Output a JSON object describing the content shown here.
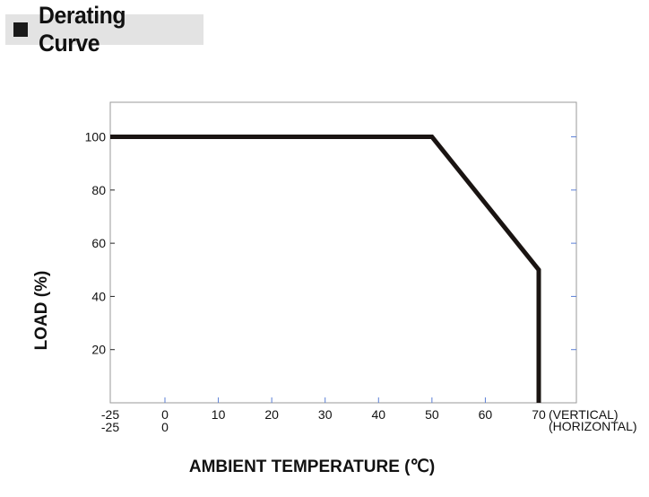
{
  "header": {
    "title": "Derating Curve"
  },
  "chart_data": {
    "type": "line",
    "title": "Derating Curve",
    "xlabel": "AMBIENT TEMPERATURE (℃)",
    "ylabel": "LOAD (%)",
    "x_ticks_vertical": [
      "-25",
      "10",
      "20",
      "30",
      "40",
      "50",
      "60",
      "70"
    ],
    "x_ticks_horizontal": [
      "-25",
      "0"
    ],
    "x_tick_vertical_zero": "0",
    "x_tick_values": [
      -25,
      0,
      10,
      20,
      30,
      40,
      50,
      60,
      70
    ],
    "y_ticks": [
      "20",
      "40",
      "60",
      "80",
      "100"
    ],
    "y_tick_values": [
      20,
      40,
      60,
      80,
      100
    ],
    "xlim": [
      -25,
      80
    ],
    "ylim": [
      0,
      113
    ],
    "suffix_vertical": "(VERTICAL)",
    "suffix_horizontal": "(HORIZONTAL)",
    "series": [
      {
        "x": [
          -25,
          50,
          70,
          70
        ],
        "y": [
          100,
          100,
          50,
          0
        ]
      }
    ],
    "grid": false,
    "line_color": "#1a1412"
  }
}
